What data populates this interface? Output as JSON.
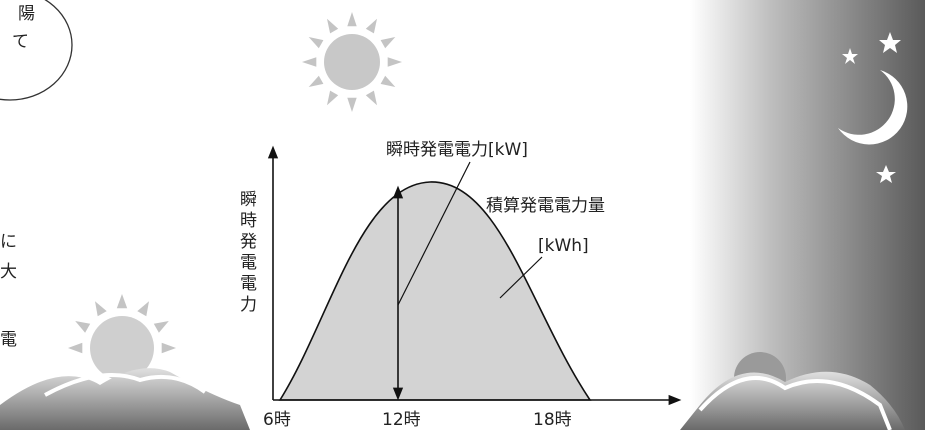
{
  "bubble": {
    "lines": [
      "陽",
      "て"
    ]
  },
  "side_text": {
    "lines": [
      "に",
      "大",
      "電"
    ]
  },
  "graph": {
    "y_axis_label": "瞬時発電電力",
    "instant_label": "瞬時発電電力[kW]",
    "integrated_label": "積算発電電力量",
    "integrated_unit": "[kWh]",
    "x_labels": [
      "6時",
      "12時",
      "18時"
    ]
  }
}
